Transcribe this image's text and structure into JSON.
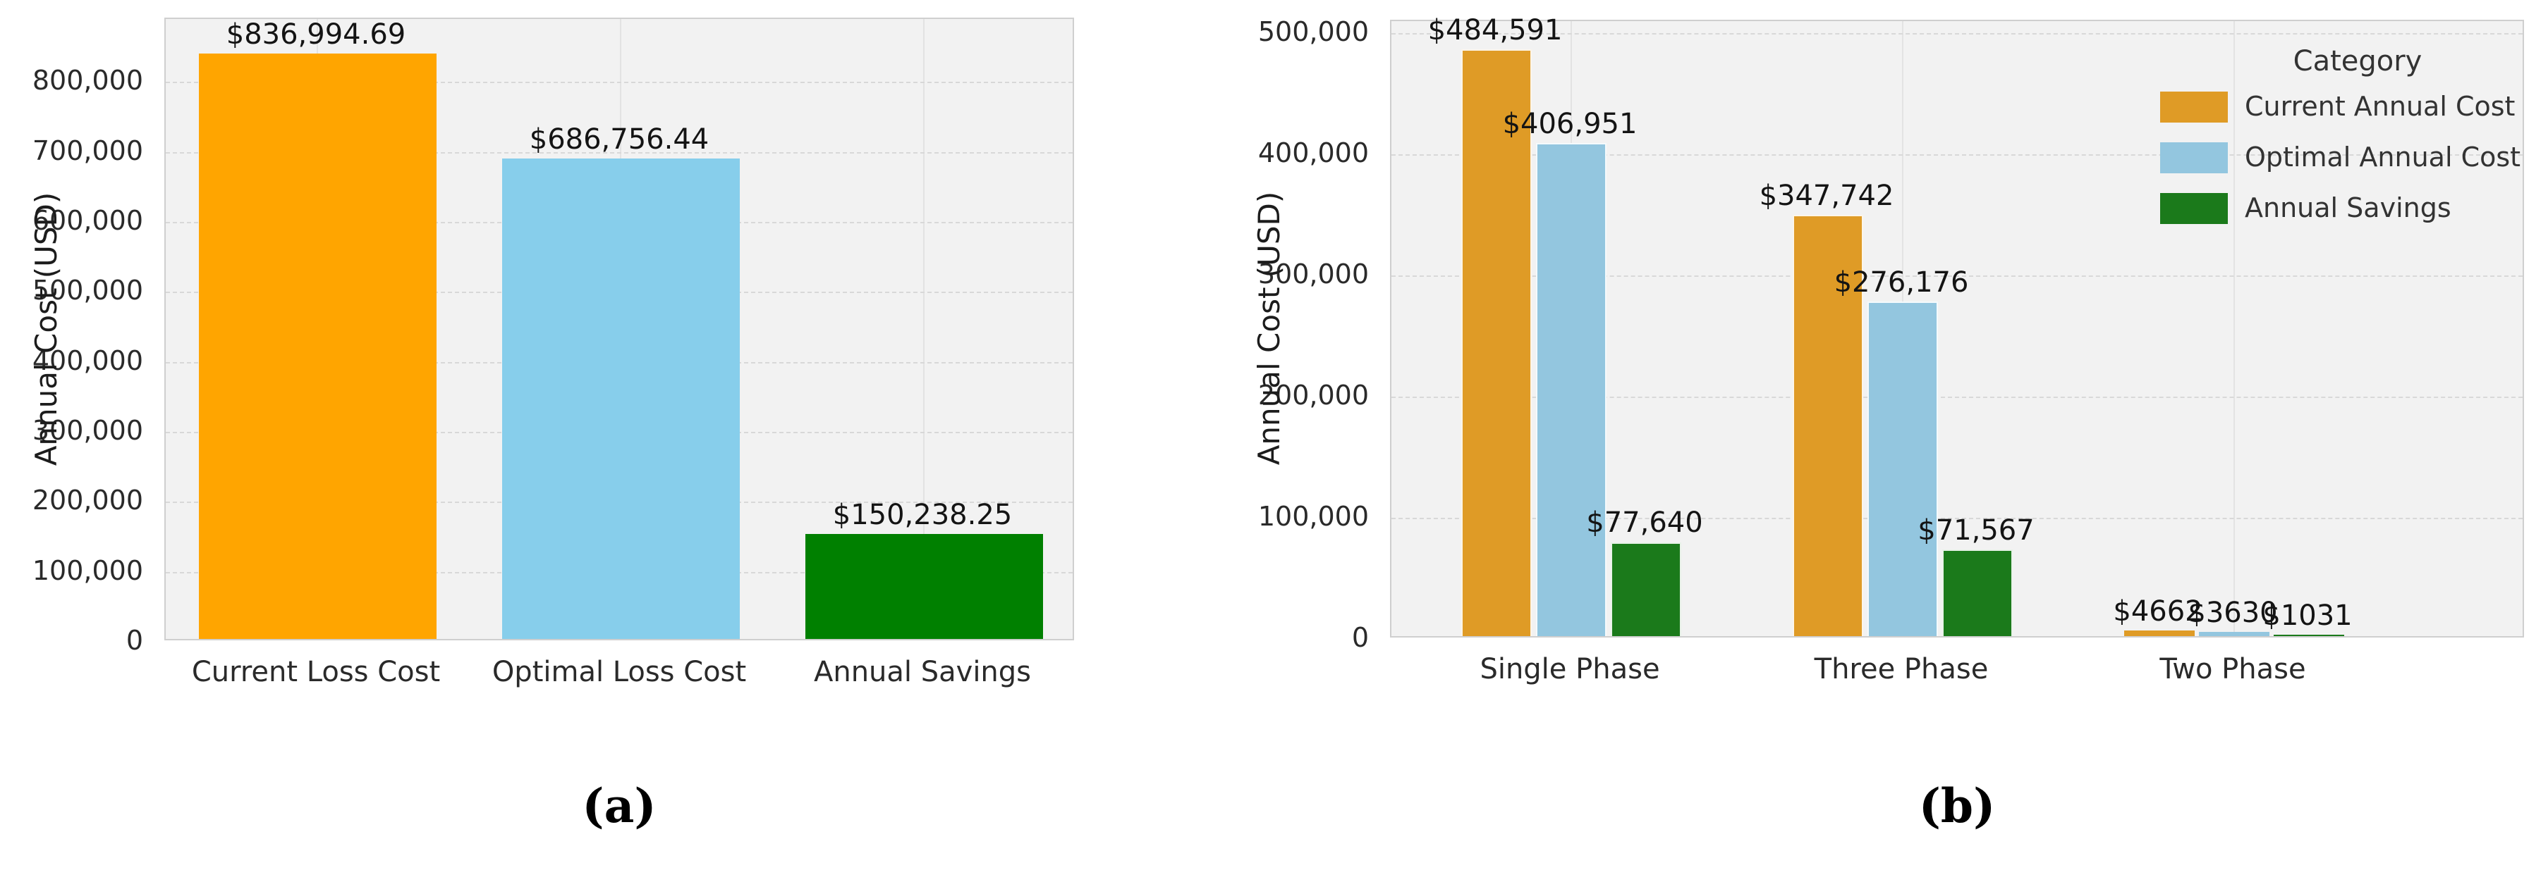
{
  "figure": {
    "background": "#ffffff",
    "plot_background": "#f2f2f2",
    "grid_dashed_color": "#d8d8d8",
    "grid_solid_color": "#e3e3e3",
    "spine_color": "#cfcfcf",
    "text_color": "#1c1c1c"
  },
  "chart_data": [
    {
      "id": "a",
      "type": "bar",
      "caption": "(a)",
      "ylabel": "Annual Cost (USD)",
      "xlabel": "",
      "grid": true,
      "categories": [
        "Current Loss Cost",
        "Optimal Loss Cost",
        "Annual Savings"
      ],
      "values": [
        836994.69,
        686756.44,
        150238.25
      ],
      "bar_labels": [
        "$836,994.69",
        "$686,756.44",
        "$150,238.25"
      ],
      "bar_colors": [
        "#FFA500",
        "#87CEEB",
        "#008000"
      ],
      "ylim": [
        0,
        890000
      ],
      "yticks": [
        0,
        100000,
        200000,
        300000,
        400000,
        500000,
        600000,
        700000,
        800000
      ],
      "ytick_labels": [
        "0",
        "100,000",
        "200,000",
        "300,000",
        "400,000",
        "500,000",
        "600,000",
        "700,000",
        "800,000"
      ]
    },
    {
      "id": "b",
      "type": "grouped-bar",
      "caption": "(b)",
      "ylabel": "Annual Cost (USD)",
      "xlabel": "",
      "grid": true,
      "categories": [
        "Single Phase",
        "Three Phase",
        "Two Phase"
      ],
      "series": [
        {
          "name": "Current Annual Cost",
          "color": "#DF9B26",
          "values": [
            484591,
            347742,
            4662
          ],
          "labels": [
            "$484,591",
            "$347,742",
            "$4662"
          ]
        },
        {
          "name": "Optimal Annual Cost",
          "color": "#93C6DF",
          "values": [
            406951,
            276176,
            3630
          ],
          "labels": [
            "$406,951",
            "$276,176",
            "$3630"
          ]
        },
        {
          "name": "Annual Savings",
          "color": "#1B7A1B",
          "values": [
            77640,
            71567,
            1031
          ],
          "labels": [
            "$77,640",
            "$71,567",
            "$1031"
          ]
        }
      ],
      "legend": {
        "title": "Category",
        "position": "upper right",
        "entries": [
          "Current Annual Cost",
          "Optimal Annual Cost",
          "Annual Savings"
        ]
      },
      "ylim": [
        0,
        510000
      ],
      "yticks": [
        0,
        100000,
        200000,
        300000,
        400000,
        500000
      ],
      "ytick_labels": [
        "0",
        "100,000",
        "200,000",
        "300,000",
        "400,000",
        "500,000"
      ]
    }
  ]
}
